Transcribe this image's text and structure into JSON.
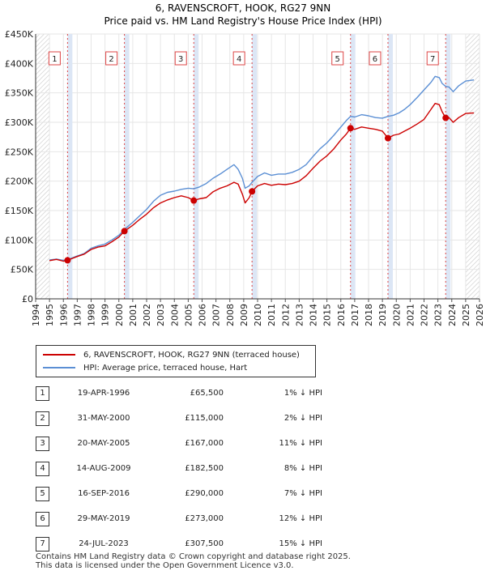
{
  "title_line1": "6, RAVENSCROFT, HOOK, RG27 9NN",
  "title_line2": "Price paid vs. HM Land Registry's House Price Index (HPI)",
  "chart_data": {
    "type": "line",
    "title": "6, RAVENSCROFT, HOOK, RG27 9NN — Price paid vs. HM Land Registry's House Price Index (HPI)",
    "xlim": [
      1994,
      2026
    ],
    "ylim": [
      0,
      450000
    ],
    "x_ticks": [
      1994,
      1995,
      1996,
      1997,
      1998,
      1999,
      2000,
      2001,
      2002,
      2003,
      2004,
      2005,
      2006,
      2007,
      2008,
      2009,
      2010,
      2011,
      2012,
      2013,
      2014,
      2015,
      2016,
      2017,
      2018,
      2019,
      2020,
      2021,
      2022,
      2023,
      2024,
      2025,
      2026
    ],
    "y_ticks": [
      {
        "value": 0,
        "label": "£0"
      },
      {
        "value": 50000,
        "label": "£50K"
      },
      {
        "value": 100000,
        "label": "£100K"
      },
      {
        "value": 150000,
        "label": "£150K"
      },
      {
        "value": 200000,
        "label": "£200K"
      },
      {
        "value": 250000,
        "label": "£250K"
      },
      {
        "value": 300000,
        "label": "£300K"
      },
      {
        "value": 350000,
        "label": "£350K"
      },
      {
        "value": 400000,
        "label": "£400K"
      },
      {
        "value": 450000,
        "label": "£450K"
      }
    ],
    "data_start": 1995.0,
    "data_end": 2025.6,
    "hatch_before": 1995.0,
    "hatch_after": 2025.0,
    "series": [
      {
        "name": "6, RAVENSCROFT, HOOK, RG27 9NN (terraced house)",
        "color": "#cc0000",
        "points": [
          [
            1995.0,
            65000
          ],
          [
            1995.5,
            67000
          ],
          [
            1996.0,
            64000
          ],
          [
            1996.3,
            65500
          ],
          [
            1997.0,
            72000
          ],
          [
            1997.5,
            76000
          ],
          [
            1998.0,
            84000
          ],
          [
            1998.5,
            88000
          ],
          [
            1999.0,
            90000
          ],
          [
            1999.5,
            97000
          ],
          [
            2000.0,
            105000
          ],
          [
            2000.4,
            115000
          ],
          [
            2001.0,
            125000
          ],
          [
            2001.5,
            135000
          ],
          [
            2002.0,
            144000
          ],
          [
            2002.5,
            155000
          ],
          [
            2003.0,
            163000
          ],
          [
            2003.5,
            168000
          ],
          [
            2004.0,
            172000
          ],
          [
            2004.5,
            175000
          ],
          [
            2005.0,
            172000
          ],
          [
            2005.4,
            167000
          ],
          [
            2005.8,
            170000
          ],
          [
            2006.3,
            172000
          ],
          [
            2006.8,
            182000
          ],
          [
            2007.3,
            188000
          ],
          [
            2007.8,
            192000
          ],
          [
            2008.3,
            198000
          ],
          [
            2008.6,
            195000
          ],
          [
            2008.9,
            178000
          ],
          [
            2009.1,
            163000
          ],
          [
            2009.4,
            172000
          ],
          [
            2009.6,
            182500
          ],
          [
            2010.0,
            192000
          ],
          [
            2010.5,
            196000
          ],
          [
            2011.0,
            193000
          ],
          [
            2011.5,
            195000
          ],
          [
            2012.0,
            194000
          ],
          [
            2012.5,
            196000
          ],
          [
            2013.0,
            200000
          ],
          [
            2013.5,
            209000
          ],
          [
            2014.0,
            222000
          ],
          [
            2014.5,
            234000
          ],
          [
            2015.0,
            243000
          ],
          [
            2015.5,
            255000
          ],
          [
            2016.0,
            270000
          ],
          [
            2016.4,
            280000
          ],
          [
            2016.7,
            290000
          ],
          [
            2017.0,
            288000
          ],
          [
            2017.5,
            292000
          ],
          [
            2018.0,
            290000
          ],
          [
            2018.5,
            288000
          ],
          [
            2019.0,
            285000
          ],
          [
            2019.4,
            273000
          ],
          [
            2019.8,
            278000
          ],
          [
            2020.2,
            280000
          ],
          [
            2020.6,
            285000
          ],
          [
            2021.0,
            290000
          ],
          [
            2021.5,
            297000
          ],
          [
            2022.0,
            305000
          ],
          [
            2022.5,
            322000
          ],
          [
            2022.8,
            332000
          ],
          [
            2023.1,
            330000
          ],
          [
            2023.3,
            318000
          ],
          [
            2023.56,
            307500
          ],
          [
            2023.8,
            308000
          ],
          [
            2024.1,
            300000
          ],
          [
            2024.5,
            308000
          ],
          [
            2025.0,
            315000
          ],
          [
            2025.6,
            316000
          ]
        ]
      },
      {
        "name": "HPI: Average price, terraced house, Hart",
        "color": "#5b8fd4",
        "points": [
          [
            1995.0,
            66000
          ],
          [
            1995.5,
            67500
          ],
          [
            1996.0,
            65500
          ],
          [
            1996.3,
            66500
          ],
          [
            1997.0,
            73000
          ],
          [
            1997.5,
            77000
          ],
          [
            1998.0,
            86000
          ],
          [
            1998.5,
            90000
          ],
          [
            1999.0,
            93000
          ],
          [
            1999.5,
            100000
          ],
          [
            2000.0,
            108000
          ],
          [
            2000.4,
            118000
          ],
          [
            2001.0,
            130000
          ],
          [
            2001.5,
            141000
          ],
          [
            2002.0,
            152000
          ],
          [
            2002.5,
            166000
          ],
          [
            2003.0,
            176000
          ],
          [
            2003.5,
            181000
          ],
          [
            2004.0,
            183000
          ],
          [
            2004.5,
            186000
          ],
          [
            2005.0,
            188000
          ],
          [
            2005.4,
            187000
          ],
          [
            2005.8,
            190000
          ],
          [
            2006.3,
            196000
          ],
          [
            2006.8,
            205000
          ],
          [
            2007.3,
            212000
          ],
          [
            2007.8,
            220000
          ],
          [
            2008.3,
            228000
          ],
          [
            2008.6,
            220000
          ],
          [
            2008.9,
            205000
          ],
          [
            2009.1,
            188000
          ],
          [
            2009.4,
            192000
          ],
          [
            2009.6,
            198000
          ],
          [
            2010.0,
            208000
          ],
          [
            2010.5,
            214000
          ],
          [
            2011.0,
            210000
          ],
          [
            2011.5,
            212000
          ],
          [
            2012.0,
            212000
          ],
          [
            2012.5,
            215000
          ],
          [
            2013.0,
            220000
          ],
          [
            2013.5,
            228000
          ],
          [
            2014.0,
            242000
          ],
          [
            2014.5,
            255000
          ],
          [
            2015.0,
            265000
          ],
          [
            2015.5,
            278000
          ],
          [
            2016.0,
            292000
          ],
          [
            2016.4,
            303000
          ],
          [
            2016.7,
            310000
          ],
          [
            2017.0,
            309000
          ],
          [
            2017.5,
            313000
          ],
          [
            2018.0,
            311000
          ],
          [
            2018.5,
            308000
          ],
          [
            2019.0,
            307000
          ],
          [
            2019.4,
            310000
          ],
          [
            2019.8,
            312000
          ],
          [
            2020.2,
            316000
          ],
          [
            2020.6,
            322000
          ],
          [
            2021.0,
            330000
          ],
          [
            2021.5,
            342000
          ],
          [
            2022.0,
            355000
          ],
          [
            2022.5,
            368000
          ],
          [
            2022.8,
            378000
          ],
          [
            2023.1,
            376000
          ],
          [
            2023.3,
            366000
          ],
          [
            2023.56,
            361000
          ],
          [
            2023.8,
            360000
          ],
          [
            2024.1,
            352000
          ],
          [
            2024.5,
            362000
          ],
          [
            2025.0,
            370000
          ],
          [
            2025.6,
            372000
          ]
        ]
      }
    ],
    "sales": [
      {
        "n": "1",
        "date": "19-APR-1996",
        "year": 1996.3,
        "price": 65500,
        "price_label": "£65,500",
        "diff": "1% ↓ HPI"
      },
      {
        "n": "2",
        "date": "31-MAY-2000",
        "year": 2000.4,
        "price": 115000,
        "price_label": "£115,000",
        "diff": "2% ↓ HPI"
      },
      {
        "n": "3",
        "date": "20-MAY-2005",
        "year": 2005.4,
        "price": 167000,
        "price_label": "£167,000",
        "diff": "11% ↓ HPI"
      },
      {
        "n": "4",
        "date": "14-AUG-2009",
        "year": 2009.6,
        "price": 182500,
        "price_label": "£182,500",
        "diff": "8% ↓ HPI"
      },
      {
        "n": "5",
        "date": "16-SEP-2016",
        "year": 2016.7,
        "price": 290000,
        "price_label": "£290,000",
        "diff": "7% ↓ HPI"
      },
      {
        "n": "6",
        "date": "29-MAY-2019",
        "year": 2019.4,
        "price": 273000,
        "price_label": "£273,000",
        "diff": "12% ↓ HPI"
      },
      {
        "n": "7",
        "date": "24-JUL-2023",
        "year": 2023.56,
        "price": 307500,
        "price_label": "£307,500",
        "diff": "15% ↓ HPI"
      }
    ],
    "colors": {
      "shade": "#dce6f5",
      "hatch": "#cfcfcf",
      "grid": "#e6e6e6",
      "marker": "#cc0000",
      "sale_line": "#dd4444"
    }
  },
  "legend": {
    "property": "6, RAVENSCROFT, HOOK, RG27 9NN (terraced house)",
    "hpi": "HPI: Average price, terraced house, Hart"
  },
  "footer": {
    "line1": "Contains HM Land Registry data © Crown copyright and database right 2025.",
    "line2": "This data is licensed under the Open Government Licence v3.0."
  }
}
